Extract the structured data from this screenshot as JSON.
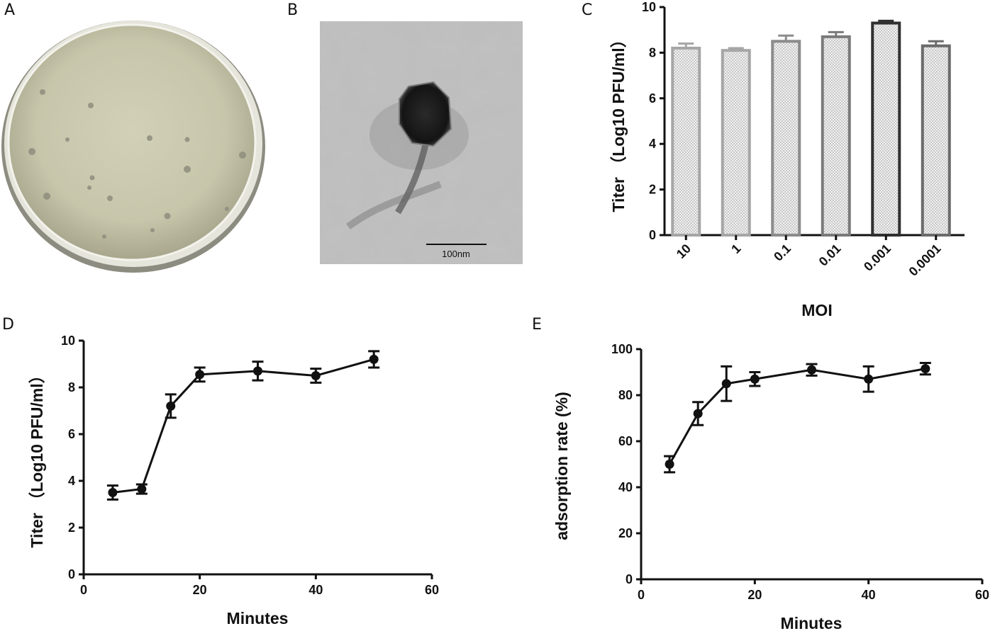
{
  "panels": {
    "a": "A",
    "b": "B",
    "c": "C",
    "d": "D",
    "e": "E"
  },
  "panel_b": {
    "scale_bar_label": "100nm"
  },
  "chart_data": [
    {
      "panel": "C",
      "type": "bar",
      "categories": [
        "10",
        "1",
        "0.1",
        "0.01",
        "0.001",
        "0.0001"
      ],
      "values": [
        8.2,
        8.1,
        8.5,
        8.7,
        9.3,
        8.3
      ],
      "errors": [
        0.2,
        0.1,
        0.25,
        0.2,
        0.1,
        0.2
      ],
      "bar_edge_colors": [
        "#a6a6a6",
        "#a6a6a6",
        "#8c8c8c",
        "#7a7a7a",
        "#303030",
        "#6b6b6b"
      ],
      "xlabel": "MOI",
      "ylabel": "Titer （Log10 PFU/ml）",
      "ylim": [
        0,
        10
      ],
      "yticks": [
        0,
        2,
        4,
        6,
        8,
        10
      ],
      "grid": false
    },
    {
      "panel": "D",
      "type": "line",
      "x": [
        5,
        10,
        15,
        20,
        30,
        40,
        50
      ],
      "y": [
        3.5,
        3.65,
        7.2,
        8.55,
        8.7,
        8.5,
        9.2
      ],
      "errors": [
        0.3,
        0.2,
        0.5,
        0.3,
        0.4,
        0.3,
        0.35
      ],
      "xlabel": "Minutes",
      "ylabel": "Titer （Log10 PFU/ml）",
      "xlim": [
        0,
        60
      ],
      "ylim": [
        0,
        10
      ],
      "xticks": [
        0,
        20,
        40,
        60
      ],
      "yticks": [
        0,
        2,
        4,
        6,
        8,
        10
      ],
      "grid": false
    },
    {
      "panel": "E",
      "type": "line",
      "x": [
        5,
        10,
        15,
        20,
        30,
        40,
        50
      ],
      "y": [
        50,
        72,
        85,
        87,
        91,
        87,
        91.5
      ],
      "errors": [
        3.5,
        5,
        7.5,
        3,
        2.5,
        5.5,
        2.5
      ],
      "xlabel": "Minutes",
      "ylabel": "adsorption rate (%)",
      "xlim": [
        0,
        60
      ],
      "ylim": [
        0,
        100
      ],
      "xticks": [
        0,
        20,
        40,
        60
      ],
      "yticks": [
        0,
        20,
        40,
        60,
        80,
        100
      ],
      "grid": false
    }
  ]
}
